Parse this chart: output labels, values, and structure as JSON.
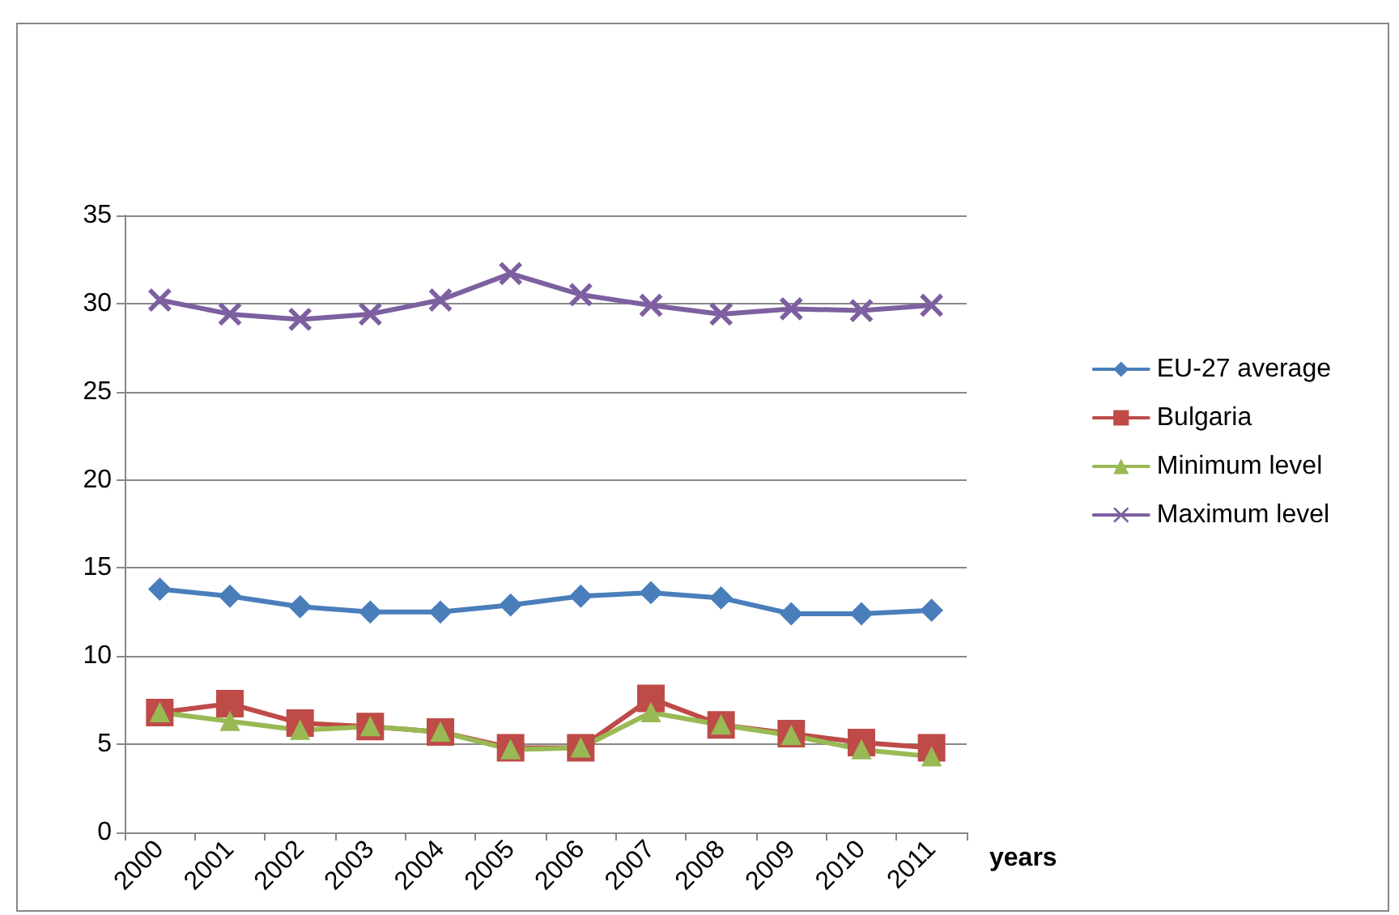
{
  "chart_data": {
    "type": "line",
    "xlabel": "years",
    "categories": [
      "2000",
      "2001",
      "2002",
      "2003",
      "2004",
      "2005",
      "2006",
      "2007",
      "2008",
      "2009",
      "2010",
      "2011"
    ],
    "series": [
      {
        "name": "EU-27 average",
        "color": "#4a7ebb",
        "marker": "diamond",
        "values": [
          13.8,
          13.4,
          12.8,
          12.5,
          12.5,
          12.9,
          13.4,
          13.6,
          13.3,
          12.4,
          12.4,
          12.6
        ]
      },
      {
        "name": "Bulgaria",
        "color": "#be4b48",
        "marker": "square",
        "values": [
          6.8,
          7.3,
          6.2,
          6.0,
          5.7,
          4.8,
          4.8,
          7.6,
          6.1,
          5.6,
          5.1,
          4.8
        ]
      },
      {
        "name": "Minimum level",
        "color": "#98b954",
        "marker": "triangle",
        "values": [
          6.8,
          6.3,
          5.8,
          6.0,
          5.7,
          4.7,
          4.8,
          6.8,
          6.1,
          5.5,
          4.7,
          4.3
        ]
      },
      {
        "name": "Maximum level",
        "color": "#7d60a0",
        "marker": "cross",
        "values": [
          30.2,
          29.4,
          29.1,
          29.4,
          30.2,
          31.7,
          30.5,
          29.9,
          29.4,
          29.7,
          29.6,
          29.9
        ]
      }
    ],
    "ylim": [
      0,
      35
    ],
    "yticks": [
      0,
      5,
      10,
      15,
      20,
      25,
      30,
      35
    ],
    "grid": "y",
    "legend": "right"
  }
}
